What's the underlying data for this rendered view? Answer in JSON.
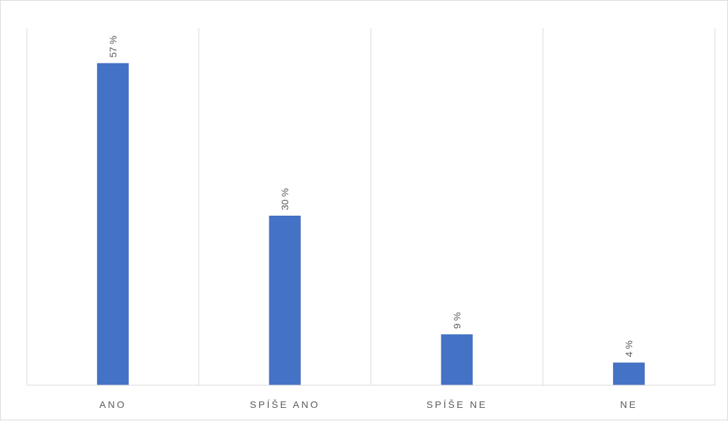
{
  "chart_data": {
    "type": "bar",
    "categories": [
      "ANO",
      "SPÍŠE ANO",
      "SPÍŠE NE",
      "NE"
    ],
    "values": [
      57,
      30,
      9,
      4
    ],
    "data_labels": [
      "57 %",
      "30 %",
      "9 %",
      "4 %"
    ],
    "ylim": [
      0,
      60
    ],
    "bar_color": "#4472c4",
    "grid": "vertical category separators",
    "legend": "none"
  }
}
